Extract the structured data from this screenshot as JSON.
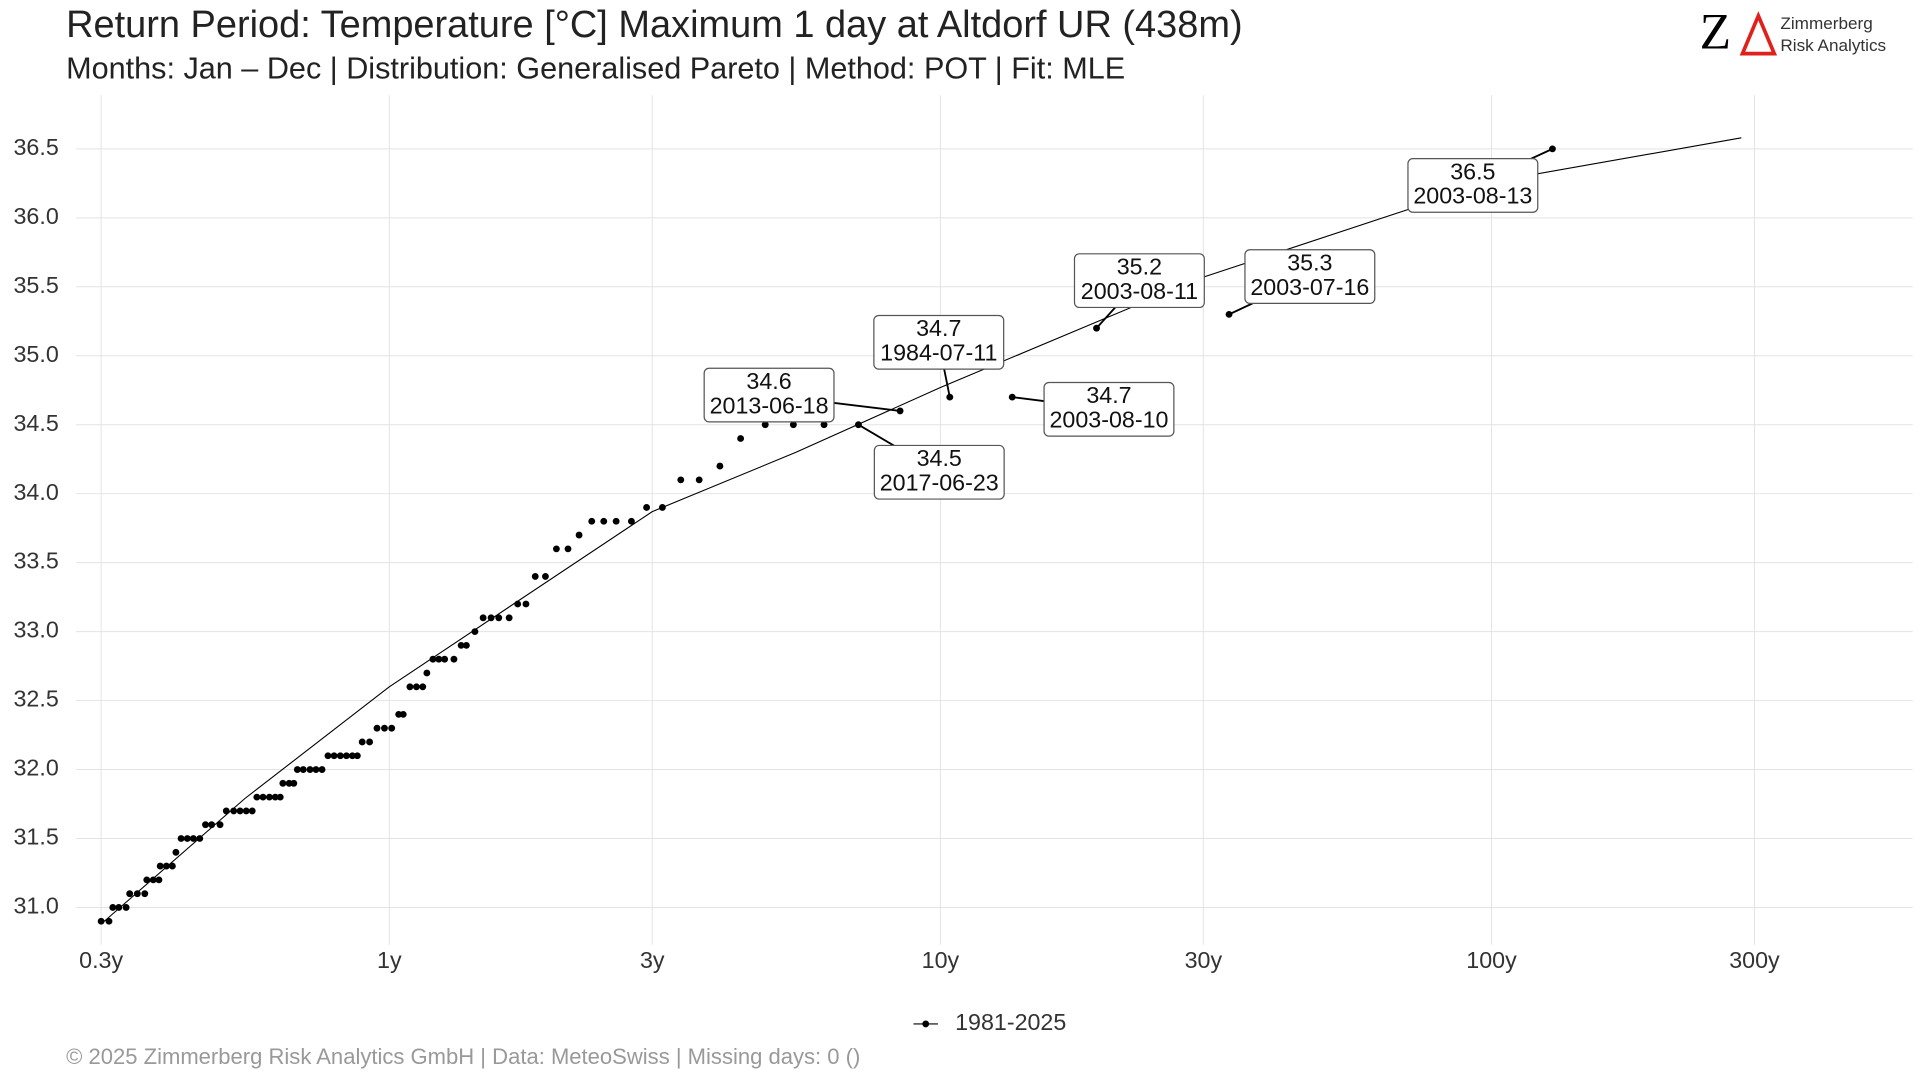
{
  "chart_data": {
    "type": "scatter",
    "title": "Return Period: Temperature [°C] Maximum 1 day at Altdorf  UR (438m)",
    "subtitle": "Months: Jan – Dec | Distribution: Generalised Pareto | Method: POT | Fit: MLE",
    "footer": "©  2025 Zimmerberg Risk Analytics GmbH | Data: MeteoSwiss | Missing days: 0 ()",
    "logo": {
      "mark": "Z",
      "line1": "Zimmerberg",
      "line2": "Risk Analytics"
    },
    "x_log": true,
    "grid": true,
    "legend_position": "bottom",
    "xlim": [
      0.27,
      581
    ],
    "ylim": [
      30.73,
      36.89
    ],
    "xticks": [
      {
        "value": 0.3,
        "label": "0.3y"
      },
      {
        "value": 1,
        "label": "1y"
      },
      {
        "value": 3,
        "label": "3y"
      },
      {
        "value": 10,
        "label": "10y"
      },
      {
        "value": 30,
        "label": "30y"
      },
      {
        "value": 100,
        "label": "100y"
      },
      {
        "value": 300,
        "label": "300y"
      }
    ],
    "yticks": [
      {
        "value": 31,
        "label": "31.0"
      },
      31.5,
      {
        "value": 32,
        "label": "32.0"
      },
      32.5,
      {
        "value": 33,
        "label": "33.0"
      },
      33.5,
      {
        "value": 34,
        "label": "34.0"
      },
      34.5,
      {
        "value": 35,
        "label": "35.0"
      },
      35.5,
      {
        "value": 36,
        "label": "36.0"
      },
      36.5
    ],
    "series": [
      {
        "name": "1981-2025",
        "color": "#000000",
        "x": [
          0.3,
          0.31,
          0.315,
          0.323,
          0.333,
          0.338,
          0.349,
          0.36,
          0.363,
          0.373,
          0.382,
          0.384,
          0.394,
          0.404,
          0.41,
          0.419,
          0.43,
          0.441,
          0.453,
          0.464,
          0.476,
          0.493,
          0.506,
          0.522,
          0.536,
          0.55,
          0.564,
          0.575,
          0.59,
          0.606,
          0.621,
          0.634,
          0.641,
          0.658,
          0.671,
          0.681,
          0.698,
          0.718,
          0.736,
          0.755,
          0.774,
          0.794,
          0.815,
          0.836,
          0.857,
          0.875,
          0.893,
          0.921,
          0.95,
          0.98,
          1.01,
          1.04,
          1.06,
          1.09,
          1.12,
          1.15,
          1.17,
          1.2,
          1.23,
          1.26,
          1.31,
          1.35,
          1.38,
          1.43,
          1.48,
          1.53,
          1.58,
          1.65,
          1.71,
          1.77,
          1.84,
          1.92,
          2.01,
          2.11,
          2.21,
          2.33,
          2.45,
          2.58,
          2.75,
          2.93,
          3.13,
          3.38,
          3.65,
          3.98,
          4.34,
          4.81,
          5.41,
          6.15,
          7.1,
          8.45,
          10.4,
          13.5,
          19.2,
          33.4,
          129
        ],
        "values": [
          30.9,
          30.9,
          31.0,
          31.0,
          31.0,
          31.1,
          31.1,
          31.1,
          31.2,
          31.2,
          31.2,
          31.3,
          31.3,
          31.3,
          31.4,
          31.5,
          31.5,
          31.5,
          31.5,
          31.6,
          31.6,
          31.6,
          31.7,
          31.7,
          31.7,
          31.7,
          31.7,
          31.8,
          31.8,
          31.8,
          31.8,
          31.8,
          31.9,
          31.9,
          31.9,
          32.0,
          32.0,
          32.0,
          32.0,
          32.0,
          32.1,
          32.1,
          32.1,
          32.1,
          32.1,
          32.1,
          32.2,
          32.2,
          32.3,
          32.3,
          32.3,
          32.4,
          32.4,
          32.6,
          32.6,
          32.6,
          32.7,
          32.8,
          32.8,
          32.8,
          32.8,
          32.9,
          32.9,
          33.0,
          33.1,
          33.1,
          33.1,
          33.1,
          33.2,
          33.2,
          33.4,
          33.4,
          33.6,
          33.6,
          33.7,
          33.8,
          33.8,
          33.8,
          33.8,
          33.9,
          33.9,
          34.1,
          34.1,
          34.2,
          34.4,
          34.5,
          34.5,
          34.5,
          34.5,
          34.6,
          34.7,
          34.7,
          35.2,
          35.3,
          36.5
        ]
      }
    ],
    "fit": {
      "color": "#000000",
      "x": [
        0.3,
        0.547,
        1,
        3,
        5.47,
        10,
        30,
        100,
        284
      ],
      "values": [
        30.88,
        31.79,
        32.6,
        33.87,
        34.3,
        34.77,
        35.57,
        36.26,
        36.58
      ]
    },
    "annotations": [
      {
        "x": 8.45,
        "y": 34.6,
        "date": "2013-06-18"
      },
      {
        "x": 7.1,
        "y": 34.5,
        "date": "2017-06-23"
      },
      {
        "x": 10.4,
        "y": 34.7,
        "date": "1984-07-11"
      },
      {
        "x": 13.5,
        "y": 34.7,
        "date": "2003-08-10"
      },
      {
        "x": 19.2,
        "y": 35.2,
        "date": "2003-08-11"
      },
      {
        "x": 33.4,
        "y": 35.3,
        "date": "2003-07-16"
      },
      {
        "x": 129,
        "y": 36.5,
        "date": "2003-08-13"
      }
    ]
  }
}
